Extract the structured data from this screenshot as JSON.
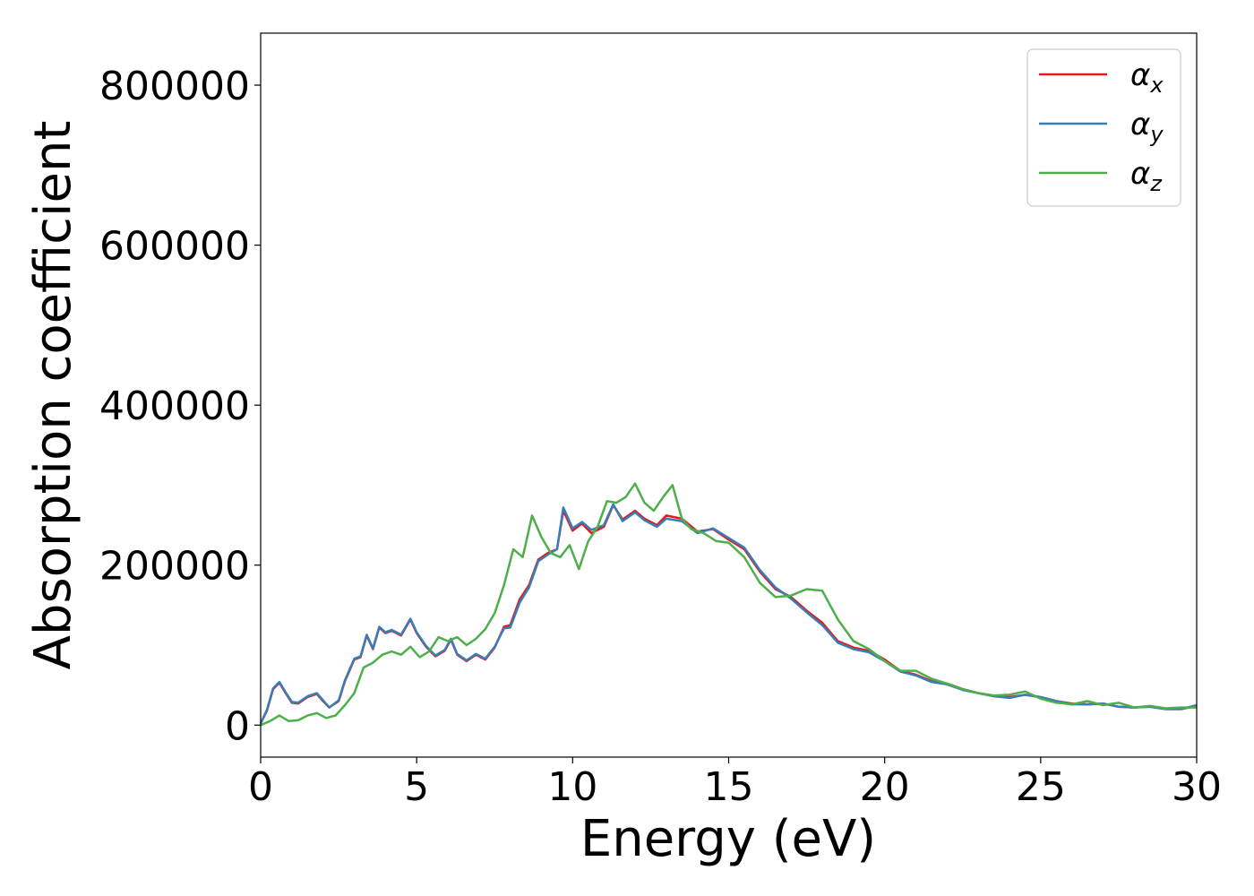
{
  "chart_data": {
    "type": "line",
    "title": "",
    "xlabel": "Energy (eV)",
    "ylabel": "Absorption coefficient",
    "xlim": [
      0,
      30
    ],
    "ylim": [
      -40000,
      865000
    ],
    "xticks": [
      0,
      5,
      10,
      15,
      20,
      25,
      30
    ],
    "xtick_labels": [
      "0",
      "5",
      "10",
      "15",
      "20",
      "25",
      "30"
    ],
    "yticks": [
      0,
      200000,
      400000,
      600000,
      800000
    ],
    "ytick_labels": [
      "0",
      "200000",
      "400000",
      "600000",
      "800000"
    ],
    "grid": false,
    "legend_position": "top-right",
    "series": [
      {
        "name": "αx",
        "legend_symbol": "α",
        "legend_sub": "x",
        "color": "#e41a1c",
        "x": [
          0,
          0.2,
          0.4,
          0.6,
          0.8,
          1.0,
          1.2,
          1.5,
          1.8,
          2.0,
          2.2,
          2.5,
          2.7,
          3.0,
          3.2,
          3.4,
          3.6,
          3.8,
          4.0,
          4.2,
          4.5,
          4.8,
          5.0,
          5.3,
          5.6,
          5.9,
          6.1,
          6.3,
          6.6,
          6.9,
          7.2,
          7.5,
          7.8,
          8.0,
          8.3,
          8.6,
          8.9,
          9.2,
          9.5,
          9.7,
          10.0,
          10.3,
          10.6,
          11.0,
          11.3,
          11.6,
          12.0,
          12.3,
          12.7,
          13.0,
          13.5,
          14.0,
          14.5,
          15.0,
          15.5,
          16.0,
          16.5,
          17.0,
          17.5,
          18.0,
          18.5,
          19.0,
          19.5,
          20.0,
          20.5,
          21.0,
          21.5,
          22.0,
          22.5,
          23.0,
          23.5,
          24.0,
          24.5,
          25.0,
          25.5,
          26.0,
          26.5,
          27.0,
          27.5,
          28.0,
          28.5,
          29.0,
          29.5,
          30.0
        ],
        "y": [
          2000,
          18000,
          45000,
          53000,
          40000,
          28000,
          27000,
          35000,
          39000,
          30000,
          22000,
          30000,
          55000,
          82000,
          85000,
          112000,
          95000,
          122000,
          115000,
          118000,
          112000,
          132000,
          115000,
          98000,
          86000,
          93000,
          107000,
          88000,
          80000,
          88000,
          82000,
          97000,
          123000,
          125000,
          157000,
          175000,
          207000,
          215000,
          220000,
          268000,
          243000,
          252000,
          240000,
          248000,
          275000,
          257000,
          268000,
          258000,
          250000,
          262000,
          258000,
          242000,
          245000,
          232000,
          220000,
          192000,
          170000,
          160000,
          143000,
          128000,
          105000,
          97000,
          93000,
          82000,
          68000,
          63000,
          55000,
          52000,
          45000,
          40000,
          37000,
          35000,
          38000,
          35000,
          30000,
          27000,
          26000,
          27000,
          23000,
          22000,
          23000,
          20000,
          20000,
          24000
        ]
      },
      {
        "name": "αy",
        "legend_symbol": "α",
        "legend_sub": "y",
        "color": "#377eb8",
        "x": [
          0,
          0.2,
          0.4,
          0.6,
          0.8,
          1.0,
          1.2,
          1.5,
          1.8,
          2.0,
          2.2,
          2.5,
          2.7,
          3.0,
          3.2,
          3.4,
          3.6,
          3.8,
          4.0,
          4.2,
          4.5,
          4.8,
          5.0,
          5.3,
          5.6,
          5.9,
          6.1,
          6.3,
          6.6,
          6.9,
          7.2,
          7.5,
          7.8,
          8.0,
          8.3,
          8.6,
          8.9,
          9.2,
          9.5,
          9.7,
          10.0,
          10.3,
          10.6,
          11.0,
          11.3,
          11.6,
          12.0,
          12.3,
          12.7,
          13.0,
          13.5,
          14.0,
          14.5,
          15.0,
          15.5,
          16.0,
          16.5,
          17.0,
          17.5,
          18.0,
          18.5,
          19.0,
          19.5,
          20.0,
          20.5,
          21.0,
          21.5,
          22.0,
          22.5,
          23.0,
          23.5,
          24.0,
          24.5,
          25.0,
          25.5,
          26.0,
          26.5,
          27.0,
          27.5,
          28.0,
          28.5,
          29.0,
          29.5,
          30.0
        ],
        "y": [
          2000,
          19000,
          46000,
          54000,
          41000,
          29000,
          28000,
          36000,
          40000,
          31000,
          22000,
          31000,
          56000,
          83000,
          86000,
          113000,
          96000,
          123000,
          116000,
          119000,
          113000,
          133000,
          116000,
          99000,
          87000,
          94000,
          108000,
          89000,
          81000,
          89000,
          83000,
          98000,
          121000,
          122000,
          153000,
          172000,
          205000,
          213000,
          220000,
          272000,
          246000,
          254000,
          244000,
          250000,
          276000,
          255000,
          266000,
          256000,
          248000,
          258000,
          255000,
          240000,
          246000,
          234000,
          222000,
          194000,
          172000,
          158000,
          141000,
          125000,
          103000,
          95000,
          91000,
          80000,
          67000,
          62000,
          54000,
          51000,
          44000,
          40000,
          36000,
          34000,
          38000,
          35000,
          30000,
          26000,
          26000,
          27000,
          23000,
          22000,
          23000,
          20000,
          20000,
          25000
        ]
      },
      {
        "name": "αz",
        "legend_symbol": "α",
        "legend_sub": "z",
        "color": "#4daf4a",
        "x": [
          0,
          0.3,
          0.6,
          0.9,
          1.2,
          1.5,
          1.8,
          2.1,
          2.4,
          2.7,
          3.0,
          3.3,
          3.6,
          3.9,
          4.2,
          4.5,
          4.8,
          5.1,
          5.4,
          5.7,
          6.0,
          6.3,
          6.6,
          6.9,
          7.2,
          7.5,
          7.8,
          8.1,
          8.4,
          8.7,
          9.0,
          9.3,
          9.6,
          9.9,
          10.2,
          10.5,
          10.8,
          11.1,
          11.4,
          11.7,
          12.0,
          12.3,
          12.6,
          12.9,
          13.2,
          13.5,
          13.8,
          14.2,
          14.6,
          15.0,
          15.5,
          16.0,
          16.5,
          17.0,
          17.5,
          18.0,
          18.5,
          19.0,
          19.5,
          20.0,
          20.5,
          21.0,
          21.5,
          22.0,
          22.5,
          23.0,
          23.5,
          24.0,
          24.5,
          25.0,
          25.5,
          26.0,
          26.5,
          27.0,
          27.5,
          28.0,
          28.5,
          29.0,
          29.5,
          30.0
        ],
        "y": [
          0,
          5000,
          12000,
          5000,
          6000,
          12000,
          15000,
          9000,
          12000,
          25000,
          40000,
          72000,
          78000,
          88000,
          92000,
          88000,
          98000,
          85000,
          92000,
          110000,
          105000,
          110000,
          100000,
          108000,
          120000,
          140000,
          175000,
          220000,
          210000,
          262000,
          235000,
          215000,
          210000,
          225000,
          195000,
          230000,
          248000,
          280000,
          278000,
          285000,
          302000,
          278000,
          268000,
          285000,
          300000,
          258000,
          245000,
          240000,
          230000,
          228000,
          210000,
          178000,
          160000,
          162000,
          170000,
          168000,
          132000,
          105000,
          95000,
          80000,
          68000,
          68000,
          58000,
          52000,
          45000,
          40000,
          37000,
          38000,
          42000,
          33000,
          28000,
          26000,
          30000,
          25000,
          28000,
          22000,
          24000,
          21000,
          22000,
          22000
        ]
      }
    ]
  }
}
